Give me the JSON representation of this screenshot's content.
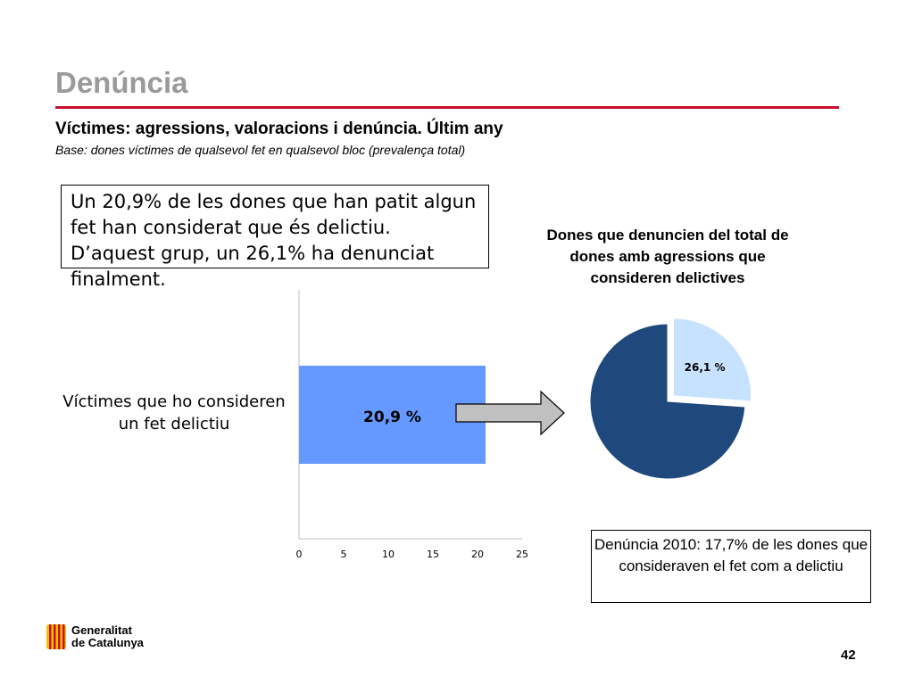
{
  "slide": {
    "title": "Denúncia",
    "subtitle": "Víctimes: agressions, valoracions i denúncia. Últim any",
    "base": "Base: dones víctimes de qualsevol fet en qualsevol bloc (prevalença total)",
    "callout": "Un 20,9% de les dones que han patit algun fet han considerat que és delictiu. D’aquest grup, un 26,1% ha denunciat finalment.",
    "note": "Denúncia 2010: 17,7% de les dones que consideraven el fet com a delictiu",
    "page_number": "42"
  },
  "logo": {
    "line1": "Generalitat",
    "line2": "de Catalunya",
    "colors": {
      "red": "#c8102e",
      "gold": "#f2c200"
    }
  },
  "arrow": {
    "icon": "right-arrow-icon",
    "color": "#c0c0c0"
  },
  "chart_data": [
    {
      "type": "bar",
      "orientation": "horizontal",
      "categories": [
        "Víctimes que ho consideren un fet delictiu"
      ],
      "values": [
        20.9
      ],
      "data_labels": [
        "20,9 %"
      ],
      "xlim": [
        0,
        25
      ],
      "xticks": [
        "0",
        "5",
        "10",
        "15",
        "20",
        "25"
      ],
      "grid": false,
      "color": "#6699ff"
    },
    {
      "type": "pie",
      "title": "Dones que denuncien del total de dones amb agressions que consideren delictives",
      "slices": [
        {
          "value": 26.1,
          "label": "26,1 %",
          "color": "#c6e2ff",
          "exploded": true
        },
        {
          "value": 73.9,
          "label": "",
          "color": "#1f497d",
          "exploded": false
        }
      ]
    }
  ]
}
